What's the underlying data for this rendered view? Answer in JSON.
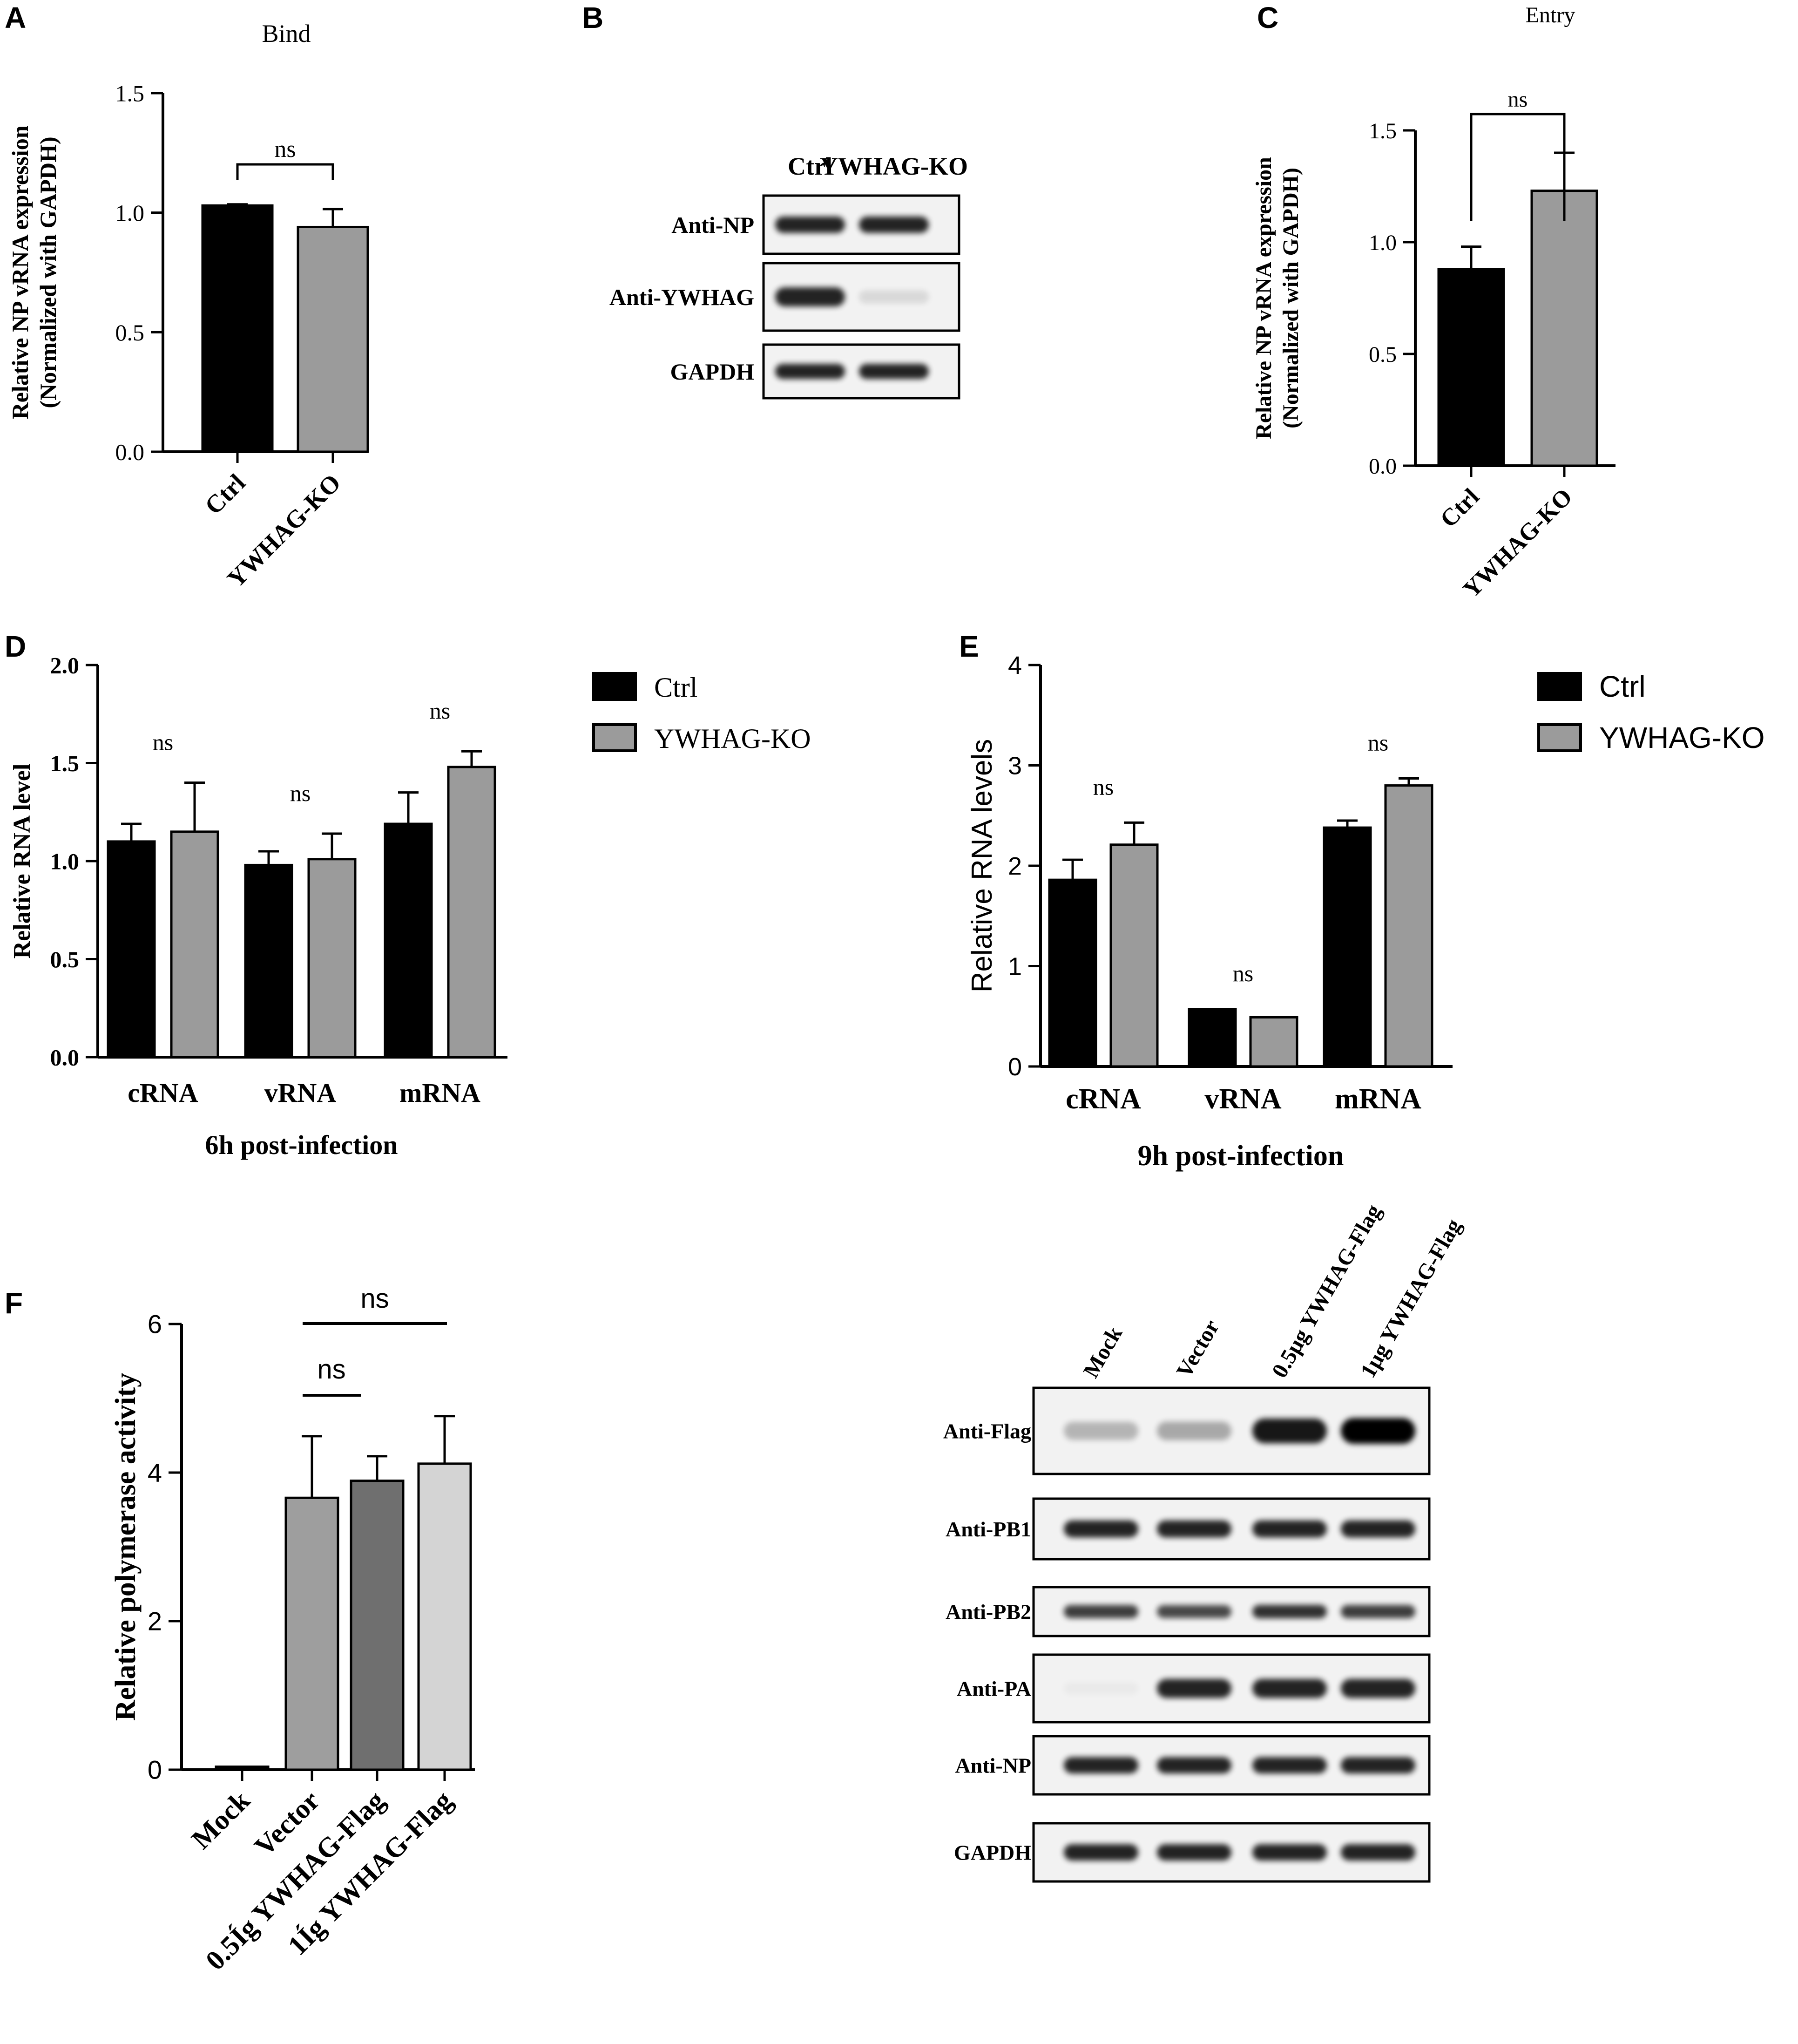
{
  "colors": {
    "ctrl": "#000000",
    "ko": "#9b9b9b",
    "f_vector": "#9e9e9e",
    "f_05": "#6f6f6f",
    "f_1": "#d4d4d4"
  },
  "chart_data": [
    {
      "panel": "A",
      "type": "bar",
      "title": "Bind",
      "categories": [
        "Ctrl",
        "YWHAG-KO"
      ],
      "values": [
        1.03,
        0.94
      ],
      "errors": [
        0.005,
        0.075
      ],
      "ylabel": [
        "Relative NP vRNA expression",
        "(Normalized with GAPDH)"
      ],
      "ylim": [
        0,
        1.5
      ],
      "ticks": [
        "0.0",
        "0.5",
        "1.0",
        "1.5"
      ],
      "significance": [
        {
          "pair": [
            0,
            1
          ],
          "label": "ns"
        }
      ]
    },
    {
      "panel": "C",
      "type": "bar",
      "title": "Entry",
      "categories": [
        "Ctrl",
        "YWHAG-KO"
      ],
      "values": [
        0.88,
        1.23
      ],
      "errors": [
        0.1,
        0.17
      ],
      "ylabel": [
        "Relative NP vRNA expression",
        "(Normalized with GAPDH)"
      ],
      "ylim": [
        0,
        1.5
      ],
      "ticks": [
        "0.0",
        "0.5",
        "1.0",
        "1.5"
      ],
      "significance": [
        {
          "pair": [
            0,
            1
          ],
          "label": "ns"
        }
      ]
    },
    {
      "panel": "D",
      "type": "bar",
      "xlabel": "6h post-infection",
      "ylabel": "Relative RNA level",
      "categories": [
        "cRNA",
        "vRNA",
        "mRNA"
      ],
      "series": [
        {
          "name": "Ctrl",
          "values": [
            1.1,
            0.98,
            1.19
          ],
          "errors": [
            0.09,
            0.07,
            0.16
          ]
        },
        {
          "name": "YWHAG-KO",
          "values": [
            1.15,
            1.01,
            1.48
          ],
          "errors": [
            0.25,
            0.13,
            0.08
          ]
        }
      ],
      "ylim": [
        0,
        2.0
      ],
      "ticks": [
        "0.0",
        "0.5",
        "1.0",
        "1.5",
        "2.0"
      ],
      "annotations": [
        "ns",
        "ns",
        "ns"
      ]
    },
    {
      "panel": "E",
      "type": "bar",
      "xlabel": "9h post-infection",
      "ylabel": "Relative RNA levels",
      "categories": [
        "cRNA",
        "vRNA",
        "mRNA"
      ],
      "series": [
        {
          "name": "Ctrl",
          "values": [
            1.86,
            0.57,
            2.38
          ],
          "errors": [
            0.2,
            0.0,
            0.07
          ]
        },
        {
          "name": "YWHAG-KO",
          "values": [
            2.21,
            0.49,
            2.8
          ],
          "errors": [
            0.22,
            0.0,
            0.07
          ]
        }
      ],
      "ylim": [
        0,
        4
      ],
      "ticks": [
        "0",
        "1",
        "2",
        "3",
        "4"
      ],
      "annotations": [
        "ns",
        "ns",
        "ns"
      ]
    },
    {
      "panel": "F",
      "type": "bar",
      "ylabel": "Relative polymerase activity",
      "categories": [
        "Mock",
        "Vector",
        "0.5Íg YWHAG-Flag",
        "1Íg YWHAG-Flag"
      ],
      "values": [
        0.04,
        3.66,
        3.89,
        4.12
      ],
      "errors": [
        0,
        0.83,
        0.33,
        0.64
      ],
      "ylim": [
        0,
        6
      ],
      "ticks": [
        "0",
        "2",
        "4",
        "6"
      ],
      "significance": [
        {
          "pair": [
            1,
            2
          ],
          "label": "ns"
        },
        {
          "pair": [
            1,
            3
          ],
          "label": "ns"
        }
      ]
    }
  ],
  "blot_b": {
    "lanes": [
      "Ctrl",
      "YWHAG-KO"
    ],
    "rows": [
      {
        "label": "Anti-NP",
        "bands": [
          0.85,
          0.85
        ]
      },
      {
        "label": "Anti-YWHAG",
        "bands": [
          0.85,
          0.1
        ]
      },
      {
        "label": "GAPDH",
        "bands": [
          0.85,
          0.85
        ]
      }
    ]
  },
  "blot_f": {
    "lanes": [
      "Mock",
      "Vector",
      "0.5μg YWHAG-Flag",
      "1μg YWHAG-Flag"
    ],
    "rows": [
      {
        "label": "Anti-Flag",
        "bands": [
          0.25,
          0.3,
          0.9,
          1.0
        ]
      },
      {
        "label": "Anti-PB1",
        "bands": [
          0.85,
          0.85,
          0.85,
          0.85
        ]
      },
      {
        "label": "Anti-PB2",
        "bands": [
          0.75,
          0.7,
          0.8,
          0.75
        ]
      },
      {
        "label": "Anti-PA",
        "bands": [
          0.03,
          0.85,
          0.85,
          0.85
        ]
      },
      {
        "label": "Anti-NP",
        "bands": [
          0.85,
          0.85,
          0.85,
          0.85
        ]
      },
      {
        "label": "GAPDH",
        "bands": [
          0.85,
          0.85,
          0.85,
          0.85
        ]
      }
    ]
  },
  "panel_labels": [
    "A",
    "B",
    "C",
    "D",
    "E",
    "F"
  ]
}
